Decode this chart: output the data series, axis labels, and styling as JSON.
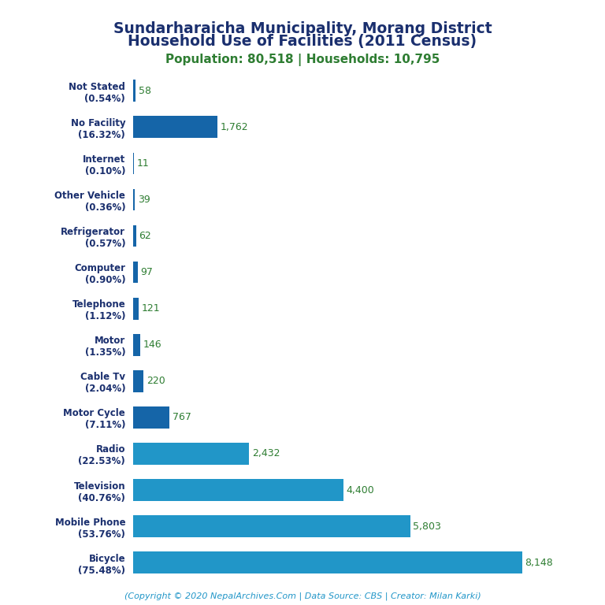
{
  "title_line1": "Sundarharaicha Municipality, Morang District",
  "title_line2": "Household Use of Facilities (2011 Census)",
  "subtitle": "Population: 80,518 | Households: 10,795",
  "title_color": "#1a2f6e",
  "subtitle_color": "#2e7d32",
  "categories": [
    "Not Stated\n(0.54%)",
    "No Facility\n(16.32%)",
    "Internet\n(0.10%)",
    "Other Vehicle\n(0.36%)",
    "Refrigerator\n(0.57%)",
    "Computer\n(0.90%)",
    "Telephone\n(1.12%)",
    "Motor\n(1.35%)",
    "Cable Tv\n(2.04%)",
    "Motor Cycle\n(7.11%)",
    "Radio\n(22.53%)",
    "Television\n(40.76%)",
    "Mobile Phone\n(53.76%)",
    "Bicycle\n(75.48%)"
  ],
  "values": [
    58,
    1762,
    11,
    39,
    62,
    97,
    121,
    146,
    220,
    767,
    2432,
    4400,
    5803,
    8148
  ],
  "value_labels": [
    "58",
    "1,762",
    "11",
    "39",
    "62",
    "97",
    "121",
    "146",
    "220",
    "767",
    "2,432",
    "4,400",
    "5,803",
    "8,148"
  ],
  "bar_color_small": "#1565a8",
  "bar_color_large": "#2196c8",
  "value_color": "#2e7d32",
  "footer": "(Copyright © 2020 NepalArchives.Com | Data Source: CBS | Creator: Milan Karki)",
  "footer_color": "#2196c8",
  "background_color": "#ffffff",
  "xlim": [
    0,
    9000
  ]
}
